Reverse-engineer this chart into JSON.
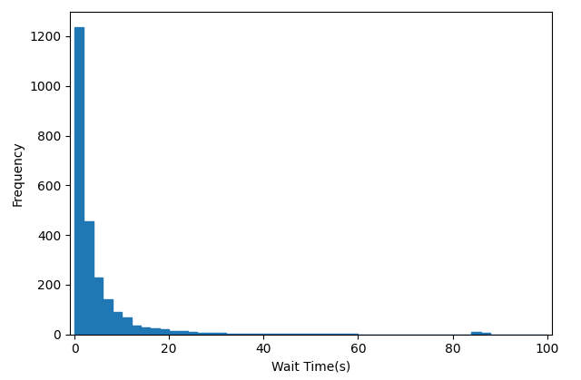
{
  "bar_heights": [
    1235,
    455,
    230,
    140,
    90,
    70,
    35,
    30,
    25,
    20,
    15,
    13,
    10,
    8,
    7,
    5,
    4,
    3,
    2,
    2,
    1,
    1,
    1,
    1,
    1,
    1,
    1,
    1,
    1,
    1,
    0,
    0,
    0,
    0,
    0,
    0,
    0,
    0,
    0,
    0,
    0,
    0,
    10,
    5,
    0,
    0,
    0,
    0,
    0,
    0
  ],
  "bin_width": 2,
  "x_start": 0,
  "bar_color": "#1f77b4",
  "xlabel": "Wait Time(s)",
  "ylabel": "Frequency",
  "xlim": [
    -1,
    101
  ],
  "ylim": [
    0,
    1300
  ],
  "yticks": [
    0,
    200,
    400,
    600,
    800,
    1000,
    1200
  ],
  "xticks": [
    0,
    20,
    40,
    60,
    80,
    100
  ],
  "figsize": [
    6.4,
    4.19
  ],
  "dpi": 100
}
